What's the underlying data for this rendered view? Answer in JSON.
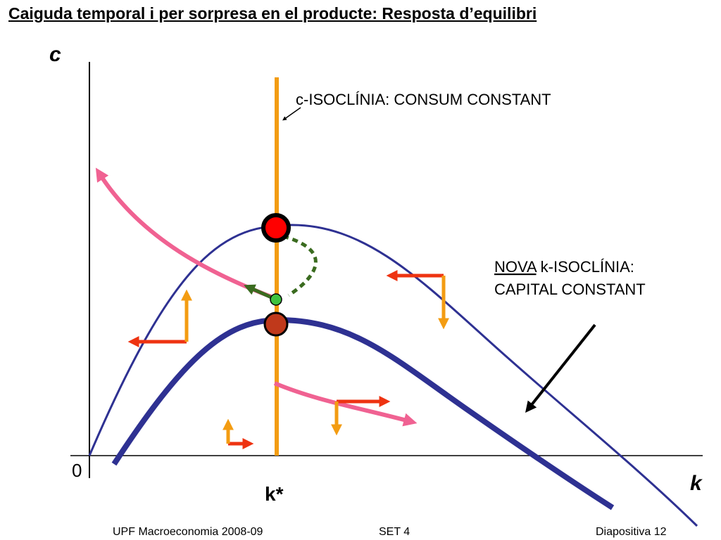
{
  "slide": {
    "title": "Caiguda temporal i per sorpresa en el producte: Resposta d’equilibri"
  },
  "axes": {
    "y_label": "c",
    "x_label": "k",
    "origin_label": "0",
    "steady_state_label": "k*"
  },
  "annotations": {
    "c_isocline": "c-ISOCLÍNIA: CONSUM CONSTANT",
    "new_k_isocline_line1_prefix": "NOVA",
    "new_k_isocline_line1_suffix": " k-ISOCLÍNIA:",
    "new_k_isocline_line2": "CAPITAL CONSTANT"
  },
  "footer": {
    "left": "UPF Macroeconomia 2008-09",
    "center": "SET 4",
    "right": "Diapositiva 12"
  },
  "colors": {
    "isocline_c": "#f39c12",
    "k_isocline": "#2e3192",
    "saddle_path": "#f06292",
    "arrow_red": "#ee3311",
    "arrow_orange": "#f39c12",
    "adjustment_path": "#3a6b1f",
    "jump_point": "#ff0000",
    "old_steady_state": "#c0391b",
    "new_point": "#3fc23f"
  }
}
